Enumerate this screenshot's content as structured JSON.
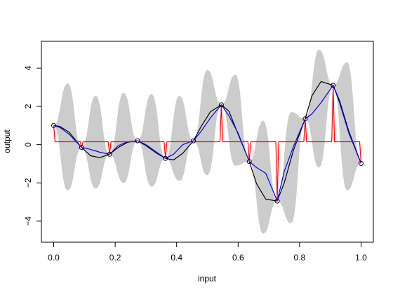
{
  "chart_data": {
    "type": "line",
    "title": "",
    "xlabel": "input",
    "ylabel": "output",
    "xlim": [
      -0.04,
      1.04
    ],
    "ylim": [
      -5.1,
      5.4
    ],
    "grid": false,
    "legend": "none",
    "xticks": [
      0.0,
      0.2,
      0.4,
      0.6,
      0.8,
      1.0
    ],
    "xtick_labels": [
      "0.0",
      "0.2",
      "0.4",
      "0.6",
      "0.8",
      "1.0"
    ],
    "yticks": [
      -4,
      -2,
      0,
      2,
      4
    ],
    "ytick_labels": [
      "−4",
      "−2",
      "0",
      "2",
      "4"
    ],
    "colors": {
      "band": "#cccccc",
      "step": "#ff0000",
      "blue": "#0000ff",
      "black": "#000000",
      "points": "#000000"
    },
    "observed_points": {
      "x": [
        0.0,
        0.0909,
        0.1818,
        0.2727,
        0.3636,
        0.4545,
        0.5455,
        0.6364,
        0.7273,
        0.8182,
        0.9091,
        1.0
      ],
      "y": [
        1.0,
        -0.15,
        -0.5,
        0.2,
        -0.72,
        0.2,
        2.08,
        -0.88,
        -2.95,
        1.35,
        3.1,
        -0.98
      ]
    },
    "grey_band": {
      "x": [
        0.0,
        0.0455,
        0.0909,
        0.1364,
        0.1818,
        0.2273,
        0.2727,
        0.3182,
        0.3636,
        0.4091,
        0.4545,
        0.5,
        0.5455,
        0.5909,
        0.6364,
        0.6818,
        0.7273,
        0.7727,
        0.8182,
        0.8636,
        0.9091,
        0.9545,
        1.0
      ],
      "lower": [
        1.0,
        -2.4,
        -0.15,
        -2.3,
        -0.5,
        -2.0,
        0.2,
        -2.2,
        -0.72,
        -1.9,
        0.2,
        -1.6,
        2.08,
        -1.1,
        -0.88,
        -4.65,
        -2.95,
        -4.1,
        1.35,
        -1.2,
        3.1,
        -2.4,
        -0.98
      ],
      "upper": [
        1.0,
        3.2,
        -0.15,
        2.55,
        -0.5,
        2.7,
        0.2,
        2.65,
        -0.72,
        2.55,
        0.2,
        3.9,
        2.08,
        3.65,
        -0.88,
        1.25,
        -2.95,
        1.7,
        1.35,
        4.95,
        3.1,
        4.3,
        -0.98
      ]
    },
    "series": [
      {
        "x": [
          0.0,
          0.02,
          0.05,
          0.0909,
          0.12,
          0.15,
          0.1818,
          0.21,
          0.24,
          0.2727,
          0.3,
          0.335,
          0.3636,
          0.39,
          0.42,
          0.4545,
          0.48,
          0.51,
          0.5455,
          0.57,
          0.6,
          0.6364,
          0.66,
          0.69,
          0.7273,
          0.75,
          0.78,
          0.8182,
          0.84,
          0.87,
          0.9091,
          0.93,
          0.96,
          1.0
        ],
        "y": [
          1.0,
          0.95,
          0.65,
          -0.15,
          -0.58,
          -0.68,
          -0.5,
          -0.15,
          0.12,
          0.2,
          -0.05,
          -0.45,
          -0.72,
          -0.8,
          -0.45,
          0.2,
          0.95,
          1.72,
          2.08,
          1.75,
          0.55,
          -0.88,
          -2.05,
          -2.85,
          -2.95,
          -2.0,
          -0.3,
          1.35,
          2.55,
          3.3,
          3.1,
          2.3,
          0.7,
          -0.98
        ]
      },
      {
        "x": [
          0.0,
          0.02,
          0.05,
          0.0909,
          0.12,
          0.15,
          0.1818,
          0.21,
          0.24,
          0.2727,
          0.3,
          0.335,
          0.3636,
          0.39,
          0.42,
          0.4545,
          0.48,
          0.51,
          0.5455,
          0.57,
          0.6,
          0.6364,
          0.66,
          0.69,
          0.7273,
          0.75,
          0.78,
          0.8182,
          0.84,
          0.87,
          0.9091,
          0.93,
          0.96,
          1.0
        ],
        "y": [
          1.0,
          0.9,
          0.55,
          -0.15,
          -0.25,
          -0.4,
          -0.5,
          -0.05,
          0.15,
          0.2,
          0.0,
          -0.4,
          -0.72,
          -0.5,
          0.0,
          0.2,
          0.7,
          1.4,
          2.08,
          1.5,
          0.6,
          -0.88,
          -1.2,
          -1.5,
          -2.95,
          -1.4,
          -0.1,
          1.35,
          1.6,
          2.2,
          3.1,
          2.2,
          0.6,
          -0.98
        ]
      },
      {
        "x": [
          0.0,
          0.0045,
          0.0864,
          0.0909,
          0.0955,
          0.1773,
          0.1818,
          0.1864,
          0.2682,
          0.2727,
          0.2773,
          0.3591,
          0.3636,
          0.3682,
          0.45,
          0.4545,
          0.4591,
          0.541,
          0.5455,
          0.55,
          0.6319,
          0.6364,
          0.641,
          0.7228,
          0.7273,
          0.7319,
          0.8137,
          0.8182,
          0.8228,
          0.9046,
          0.9091,
          0.9137,
          0.9955,
          1.0
        ],
        "y": [
          1.0,
          0.15,
          0.15,
          -0.15,
          0.15,
          0.15,
          -0.5,
          0.15,
          0.15,
          0.2,
          0.15,
          0.15,
          -0.72,
          0.15,
          0.15,
          0.2,
          0.15,
          0.15,
          2.08,
          0.15,
          0.15,
          -0.88,
          0.15,
          0.15,
          -2.95,
          0.15,
          0.15,
          1.35,
          0.15,
          0.15,
          3.1,
          0.15,
          0.15,
          -0.98
        ]
      }
    ]
  }
}
